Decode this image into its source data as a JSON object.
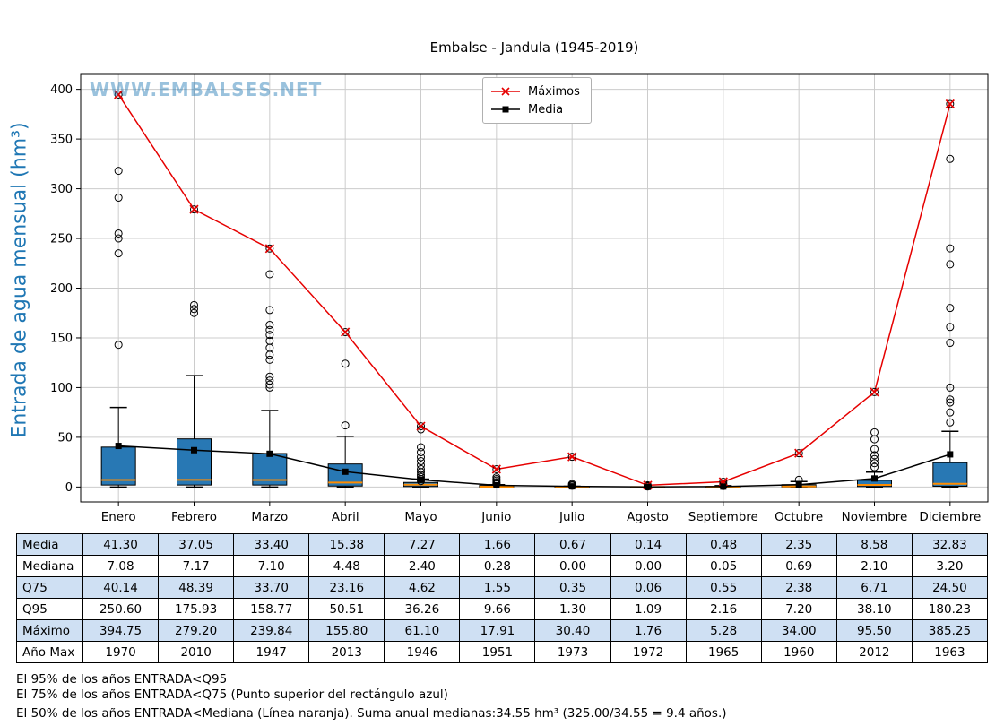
{
  "title": "Embalse - Jandula (1945-2019)",
  "watermark": "WWW.EMBALSES.NET",
  "ylabel": "Entrada de agua mensual (hm³)",
  "legend": {
    "maximos_label": "Máximos",
    "media_label": "Media"
  },
  "colors": {
    "box_fill": "#2878b4",
    "median_line": "#ff8c00",
    "max_line": "#e60000",
    "mean_line": "#000000",
    "grid": "#cccccc",
    "table_row_alt": "#cfe0f3",
    "axis_label": "#1f77b4"
  },
  "chart_data": {
    "type": "boxplot",
    "title": "Embalse - Jandula (1945-2019)",
    "ylabel": "Entrada de agua mensual (hm³)",
    "ylim": [
      -15,
      415
    ],
    "yticks": [
      0,
      50,
      100,
      150,
      200,
      250,
      300,
      350,
      400
    ],
    "grid": true,
    "legend_position": "top-center",
    "categories": [
      "Enero",
      "Febrero",
      "Marzo",
      "Abril",
      "Mayo",
      "Junio",
      "Julio",
      "Agosto",
      "Septiembre",
      "Octubre",
      "Noviembre",
      "Diciembre"
    ],
    "series": [
      {
        "name": "Máximos",
        "type": "line",
        "marker": "x",
        "color": "#e60000",
        "values": [
          394.75,
          279.2,
          239.84,
          155.8,
          61.1,
          17.91,
          30.4,
          1.76,
          5.28,
          34.0,
          95.5,
          385.25
        ]
      },
      {
        "name": "Media",
        "type": "line",
        "marker": "square",
        "color": "#000000",
        "values": [
          41.3,
          37.05,
          33.4,
          15.38,
          7.27,
          1.66,
          0.67,
          0.14,
          0.48,
          2.35,
          8.58,
          32.83
        ]
      }
    ],
    "boxplot": {
      "median": [
        7.08,
        7.17,
        7.1,
        4.48,
        2.4,
        0.28,
        0.0,
        0.0,
        0.05,
        0.69,
        2.1,
        3.2
      ],
      "q25": [
        2.0,
        2.0,
        2.0,
        1.0,
        0.5,
        0.05,
        0.0,
        0.0,
        0.0,
        0.1,
        0.5,
        0.8
      ],
      "q75": [
        40.14,
        48.39,
        33.7,
        23.16,
        4.62,
        1.55,
        0.35,
        0.06,
        0.55,
        2.38,
        6.71,
        24.5
      ],
      "whisker_low": [
        0,
        0,
        0,
        0,
        0,
        0,
        0,
        0,
        0,
        0,
        0,
        0
      ],
      "whisker_high": [
        80,
        112,
        77,
        51,
        8,
        2.3,
        0.8,
        0.15,
        1.3,
        5.5,
        15,
        56
      ],
      "outliers": [
        [
          143,
          235,
          250,
          255,
          291,
          318
        ],
        [
          175,
          179,
          183
        ],
        [
          100,
          103,
          107,
          111,
          128,
          133,
          140,
          147,
          153,
          158,
          163,
          178,
          214
        ],
        [
          62,
          124
        ],
        [
          6,
          8,
          10,
          12,
          15,
          18,
          22,
          26,
          30,
          35,
          40,
          58
        ],
        [
          3,
          4,
          5,
          6.5,
          8,
          9.7
        ],
        [
          1.3,
          2,
          3
        ],
        [
          0.5,
          1.09
        ],
        [
          1,
          2.16,
          3
        ],
        [
          7.2
        ],
        [
          20,
          24,
          28,
          32,
          38.1,
          48,
          55
        ],
        [
          65,
          75,
          85,
          88,
          100,
          145,
          161,
          180,
          224,
          240,
          330
        ]
      ]
    }
  },
  "table": {
    "row_headers": [
      "Media",
      "Mediana",
      "Q75",
      "Q95",
      "Máximo",
      "Año Max"
    ],
    "rows": [
      [
        "41.30",
        "37.05",
        "33.40",
        "15.38",
        "7.27",
        "1.66",
        "0.67",
        "0.14",
        "0.48",
        "2.35",
        "8.58",
        "32.83"
      ],
      [
        "7.08",
        "7.17",
        "7.10",
        "4.48",
        "2.40",
        "0.28",
        "0.00",
        "0.00",
        "0.05",
        "0.69",
        "2.10",
        "3.20"
      ],
      [
        "40.14",
        "48.39",
        "33.70",
        "23.16",
        "4.62",
        "1.55",
        "0.35",
        "0.06",
        "0.55",
        "2.38",
        "6.71",
        "24.50"
      ],
      [
        "250.60",
        "175.93",
        "158.77",
        "50.51",
        "36.26",
        "9.66",
        "1.30",
        "1.09",
        "2.16",
        "7.20",
        "38.10",
        "180.23"
      ],
      [
        "394.75",
        "279.20",
        "239.84",
        "155.80",
        "61.10",
        "17.91",
        "30.40",
        "1.76",
        "5.28",
        "34.00",
        "95.50",
        "385.25"
      ],
      [
        "1970",
        "2010",
        "1947",
        "2013",
        "1946",
        "1951",
        "1973",
        "1972",
        "1965",
        "1960",
        "2012",
        "1963"
      ]
    ]
  },
  "footnotes": [
    "El 95% de los años ENTRADA<Q95",
    "El 75% de los años ENTRADA<Q75 (Punto superior del rectángulo azul)",
    "El 50% de los años ENTRADA<Mediana (Línea naranja). Suma anual medianas:34.55 hm³ (325.00/34.55 = 9.4 años.)"
  ]
}
